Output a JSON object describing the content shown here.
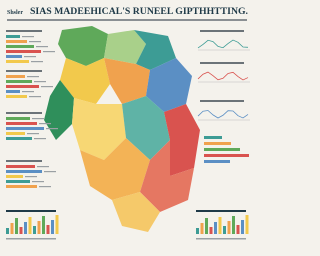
{
  "header": {
    "kicker": "Shsler",
    "title": "SIAS MADEEHICAL'S RUNEEL GIPTHHTTING."
  }
}
